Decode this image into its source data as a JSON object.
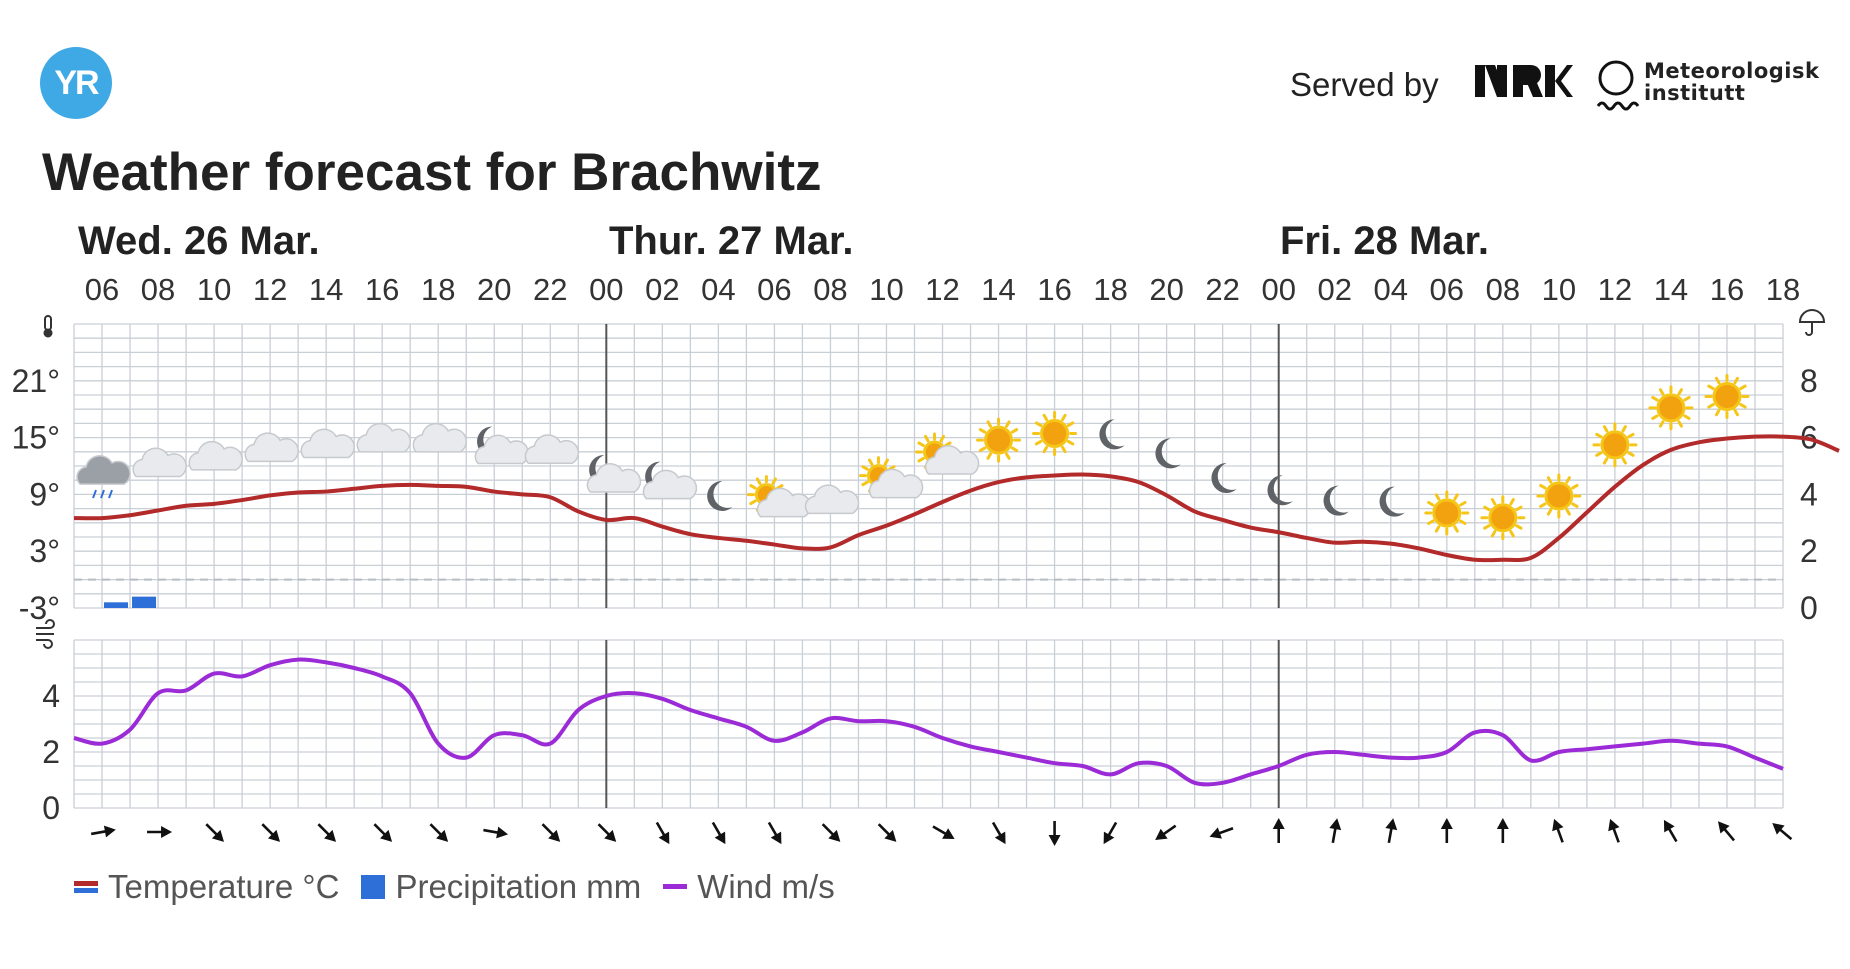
{
  "brand": {
    "logo_text": "YR",
    "served_by": "Served by",
    "partner1": "NRK",
    "partner2_line1": "Meteorologisk",
    "partner2_line2": "institutt"
  },
  "page_title": "Weather forecast for Brachwitz",
  "legend": {
    "temperature": "Temperature °C",
    "precipitation": "Precipitation mm",
    "wind": "Wind m/s"
  },
  "colors": {
    "temperature": "#b22a2a",
    "precipitation": "#2e6fd7",
    "wind": "#9b2bd6",
    "grid": "#c9cfd6",
    "day_divider": "#555555"
  },
  "chart_data": {
    "type": "line",
    "days": [
      {
        "label": "Wed. 26 Mar.",
        "start_hour": 0
      },
      {
        "label": "Thur. 27 Mar.",
        "start_hour": 24
      },
      {
        "label": "Fri. 28 Mar.",
        "start_hour": 48
      }
    ],
    "x_start_hour": 5,
    "x_end_hour": 66,
    "hour_ticks": [
      "06",
      "08",
      "10",
      "12",
      "14",
      "16",
      "18",
      "20",
      "22",
      "00",
      "02",
      "04",
      "06",
      "08",
      "10",
      "12",
      "14",
      "16",
      "18",
      "20",
      "22",
      "00",
      "02",
      "04",
      "06",
      "08",
      "10",
      "12",
      "14",
      "16",
      "18"
    ],
    "temperature": {
      "unit": "°C",
      "y_ticks": [
        "21°",
        "15°",
        "9°",
        "3°",
        "-3°"
      ],
      "ylim": [
        -3,
        27
      ],
      "series": [
        [
          5,
          6.5
        ],
        [
          6,
          6.5
        ],
        [
          7,
          6.8
        ],
        [
          8,
          7.3
        ],
        [
          9,
          7.8
        ],
        [
          10,
          8
        ],
        [
          11,
          8.4
        ],
        [
          12,
          8.9
        ],
        [
          13,
          9.2
        ],
        [
          14,
          9.3
        ],
        [
          15,
          9.6
        ],
        [
          16,
          9.9
        ],
        [
          17,
          10
        ],
        [
          18,
          9.9
        ],
        [
          19,
          9.8
        ],
        [
          20,
          9.3
        ],
        [
          21,
          9
        ],
        [
          22,
          8.7
        ],
        [
          23,
          7.2
        ],
        [
          24,
          6.3
        ],
        [
          25,
          6.5
        ],
        [
          26,
          5.6
        ],
        [
          27,
          4.8
        ],
        [
          28,
          4.4
        ],
        [
          29,
          4.1
        ],
        [
          30,
          3.7
        ],
        [
          31,
          3.3
        ],
        [
          32,
          3.4
        ],
        [
          33,
          4.7
        ],
        [
          34,
          5.7
        ],
        [
          35,
          6.9
        ],
        [
          36,
          8.2
        ],
        [
          37,
          9.4
        ],
        [
          38,
          10.3
        ],
        [
          39,
          10.8
        ],
        [
          40,
          11
        ],
        [
          41,
          11.1
        ],
        [
          42,
          10.9
        ],
        [
          43,
          10.3
        ],
        [
          44,
          8.9
        ],
        [
          45,
          7.2
        ],
        [
          46,
          6.3
        ],
        [
          47,
          5.5
        ],
        [
          48,
          5
        ],
        [
          49,
          4.4
        ],
        [
          50,
          3.9
        ],
        [
          51,
          4
        ],
        [
          52,
          3.8
        ],
        [
          53,
          3.3
        ],
        [
          54,
          2.6
        ],
        [
          55,
          2.1
        ],
        [
          56,
          2.1
        ],
        [
          57,
          2.3
        ],
        [
          58,
          4.4
        ],
        [
          59,
          7.1
        ],
        [
          60,
          9.8
        ],
        [
          61,
          12.1
        ],
        [
          62,
          13.7
        ],
        [
          63,
          14.5
        ],
        [
          64,
          14.9
        ],
        [
          65,
          15.1
        ],
        [
          66,
          15.1
        ],
        [
          67,
          14.8
        ],
        [
          68,
          13.6
        ]
      ]
    },
    "precipitation": {
      "unit": "mm",
      "y_ticks": [
        "8",
        "6",
        "4",
        "2",
        "0"
      ],
      "ylim": [
        0,
        10
      ],
      "bars": [
        [
          6,
          0.2
        ],
        [
          7,
          0.4
        ]
      ]
    },
    "wind": {
      "unit": "m/s",
      "y_ticks": [
        "4",
        "2",
        "0"
      ],
      "ylim": [
        0,
        6
      ],
      "series": [
        [
          5,
          2.5
        ],
        [
          6,
          2.3
        ],
        [
          7,
          2.8
        ],
        [
          8,
          4.1
        ],
        [
          9,
          4.2
        ],
        [
          10,
          4.8
        ],
        [
          11,
          4.7
        ],
        [
          12,
          5.1
        ],
        [
          13,
          5.3
        ],
        [
          14,
          5.2
        ],
        [
          15,
          5
        ],
        [
          16,
          4.7
        ],
        [
          17,
          4.1
        ],
        [
          18,
          2.3
        ],
        [
          19,
          1.8
        ],
        [
          20,
          2.6
        ],
        [
          21,
          2.6
        ],
        [
          22,
          2.3
        ],
        [
          23,
          3.5
        ],
        [
          24,
          4
        ],
        [
          25,
          4.1
        ],
        [
          26,
          3.9
        ],
        [
          27,
          3.5
        ],
        [
          28,
          3.2
        ],
        [
          29,
          2.9
        ],
        [
          30,
          2.4
        ],
        [
          31,
          2.7
        ],
        [
          32,
          3.2
        ],
        [
          33,
          3.1
        ],
        [
          34,
          3.1
        ],
        [
          35,
          2.9
        ],
        [
          36,
          2.5
        ],
        [
          37,
          2.2
        ],
        [
          38,
          2
        ],
        [
          39,
          1.8
        ],
        [
          40,
          1.6
        ],
        [
          41,
          1.5
        ],
        [
          42,
          1.2
        ],
        [
          43,
          1.6
        ],
        [
          44,
          1.5
        ],
        [
          45,
          0.9
        ],
        [
          46,
          0.9
        ],
        [
          47,
          1.2
        ],
        [
          48,
          1.5
        ],
        [
          49,
          1.9
        ],
        [
          50,
          2
        ],
        [
          51,
          1.9
        ],
        [
          52,
          1.8
        ],
        [
          53,
          1.8
        ],
        [
          54,
          2
        ],
        [
          55,
          2.7
        ],
        [
          56,
          2.6
        ],
        [
          57,
          1.7
        ],
        [
          58,
          2
        ],
        [
          59,
          2.1
        ],
        [
          60,
          2.2
        ],
        [
          61,
          2.3
        ],
        [
          62,
          2.4
        ],
        [
          63,
          2.3
        ],
        [
          64,
          2.2
        ],
        [
          65,
          1.8
        ],
        [
          66,
          1.4
        ]
      ]
    },
    "wind_direction_degrees": [
      80,
      90,
      135,
      135,
      135,
      135,
      135,
      100,
      135,
      135,
      150,
      150,
      150,
      135,
      135,
      120,
      150,
      180,
      210,
      235,
      250,
      0,
      10,
      10,
      0,
      0,
      340,
      340,
      330,
      320,
      310
    ],
    "weather_icons": [
      {
        "hour": 6,
        "icon": "rain-cloud"
      },
      {
        "hour": 8,
        "icon": "cloud"
      },
      {
        "hour": 10,
        "icon": "cloud"
      },
      {
        "hour": 12,
        "icon": "cloud"
      },
      {
        "hour": 14,
        "icon": "cloud"
      },
      {
        "hour": 16,
        "icon": "cloud"
      },
      {
        "hour": 18,
        "icon": "cloud"
      },
      {
        "hour": 20,
        "icon": "moon-cloud"
      },
      {
        "hour": 22,
        "icon": "cloud"
      },
      {
        "hour": 24,
        "icon": "moon-cloud"
      },
      {
        "hour": 26,
        "icon": "moon-cloud"
      },
      {
        "hour": 28,
        "icon": "moon"
      },
      {
        "hour": 30,
        "icon": "sun-cloud"
      },
      {
        "hour": 32,
        "icon": "cloud"
      },
      {
        "hour": 34,
        "icon": "sun-cloud"
      },
      {
        "hour": 36,
        "icon": "sun-cloud"
      },
      {
        "hour": 38,
        "icon": "sun"
      },
      {
        "hour": 40,
        "icon": "sun"
      },
      {
        "hour": 42,
        "icon": "moon"
      },
      {
        "hour": 44,
        "icon": "moon"
      },
      {
        "hour": 46,
        "icon": "moon"
      },
      {
        "hour": 48,
        "icon": "moon"
      },
      {
        "hour": 50,
        "icon": "moon"
      },
      {
        "hour": 52,
        "icon": "moon"
      },
      {
        "hour": 54,
        "icon": "sun"
      },
      {
        "hour": 56,
        "icon": "sun"
      },
      {
        "hour": 58,
        "icon": "sun"
      },
      {
        "hour": 60,
        "icon": "sun"
      },
      {
        "hour": 62,
        "icon": "sun"
      },
      {
        "hour": 64,
        "icon": "sun"
      }
    ]
  }
}
